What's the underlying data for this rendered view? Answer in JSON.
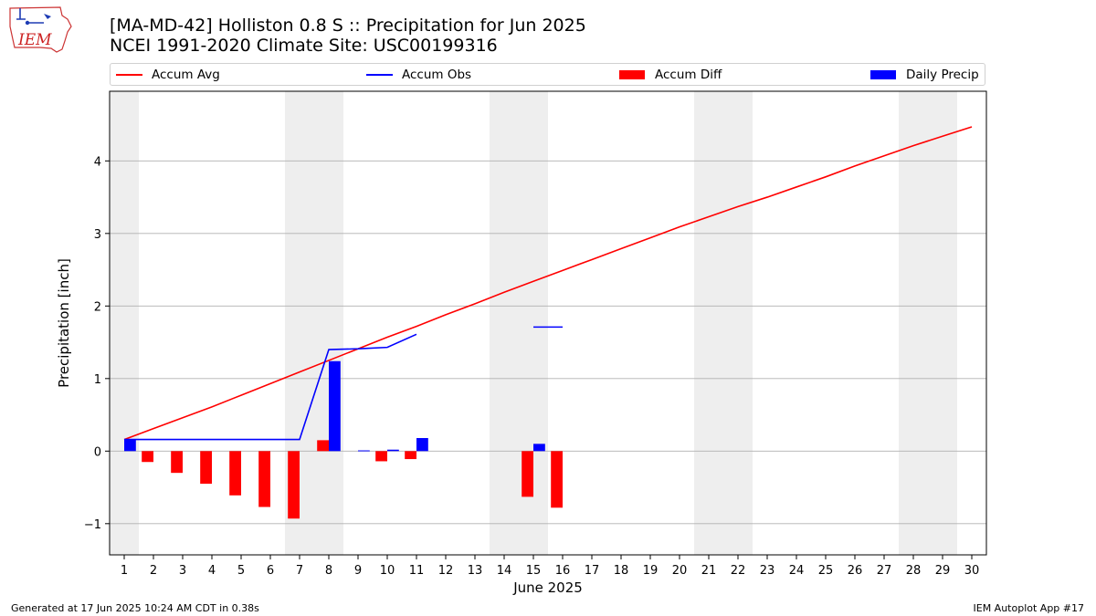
{
  "logo": {
    "text": "IEM",
    "icon": "iem-iowa-logo-icon"
  },
  "title_line1": "[MA-MD-42] Holliston 0.8 S :: Precipitation for Jun 2025",
  "title_line2": "NCEI 1991-2020 Climate Site: USC00199316",
  "legend": {
    "items": [
      {
        "label": "Accum Avg",
        "kind": "line",
        "color": "#ff0000"
      },
      {
        "label": "Accum Obs",
        "kind": "line",
        "color": "#0000ff"
      },
      {
        "label": "Accum Diff",
        "kind": "bar",
        "color": "#ff0000"
      },
      {
        "label": "Daily Precip",
        "kind": "bar",
        "color": "#0000ff"
      }
    ]
  },
  "footer_left": "Generated at 17 Jun 2025 10:24 AM CDT in 0.38s",
  "footer_right": "IEM Autoplot App #17",
  "chart_data": {
    "type": "bar",
    "title": "[MA-MD-42] Holliston 0.8 S :: Precipitation for Jun 2025",
    "subtitle": "NCEI 1991-2020 Climate Site: USC00199316",
    "xlabel": "June 2025",
    "ylabel": "Precipitation [inch]",
    "x": [
      1,
      2,
      3,
      4,
      5,
      6,
      7,
      8,
      9,
      10,
      11,
      12,
      13,
      14,
      15,
      16,
      17,
      18,
      19,
      20,
      21,
      22,
      23,
      24,
      25,
      26,
      27,
      28,
      29,
      30
    ],
    "xlim": [
      0.5,
      30.5
    ],
    "ylim": [
      -1.43,
      4.96
    ],
    "yticks": [
      -1,
      0,
      1,
      2,
      3,
      4
    ],
    "ytick_labels": [
      "−1",
      "0",
      "1",
      "2",
      "3",
      "4"
    ],
    "grid": "y-major",
    "legend_position": "top, above plot",
    "weekend_shading": {
      "color": "#eeeeee",
      "days": [
        1,
        7,
        8,
        14,
        15,
        21,
        22,
        28,
        29
      ]
    },
    "series": [
      {
        "name": "Accum Avg",
        "kind": "line",
        "color": "#ff0000",
        "values": [
          0.16,
          0.31,
          0.46,
          0.61,
          0.77,
          0.93,
          1.09,
          1.25,
          1.41,
          1.57,
          1.72,
          1.88,
          2.03,
          2.19,
          2.34,
          2.49,
          2.64,
          2.79,
          2.94,
          3.09,
          3.23,
          3.37,
          3.5,
          3.64,
          3.78,
          3.93,
          4.07,
          4.21,
          4.34,
          4.47
        ]
      },
      {
        "name": "Accum Obs",
        "kind": "line",
        "color": "#0000ff",
        "values": [
          0.16,
          0.16,
          0.16,
          0.16,
          0.16,
          0.16,
          0.16,
          1.4,
          1.41,
          1.43,
          1.61,
          null,
          null,
          null,
          1.71,
          1.71,
          null,
          null,
          null,
          null,
          null,
          null,
          null,
          null,
          null,
          null,
          null,
          null,
          null,
          null
        ]
      },
      {
        "name": "Accum Diff",
        "kind": "bar",
        "color": "#ff0000",
        "values": [
          0.0,
          -0.15,
          -0.3,
          -0.45,
          -0.61,
          -0.77,
          -0.93,
          0.15,
          0.0,
          -0.14,
          -0.11,
          null,
          null,
          null,
          -0.63,
          -0.78,
          null,
          null,
          null,
          null,
          null,
          null,
          null,
          null,
          null,
          null,
          null,
          null,
          null,
          null
        ]
      },
      {
        "name": "Daily Precip",
        "kind": "bar",
        "color": "#0000ff",
        "values": [
          0.16,
          0,
          0,
          0,
          0,
          0,
          0,
          1.24,
          0.01,
          0.02,
          0.18,
          null,
          null,
          null,
          0.1,
          0,
          null,
          null,
          null,
          null,
          null,
          null,
          null,
          null,
          null,
          null,
          null,
          null,
          null,
          null
        ]
      }
    ]
  }
}
